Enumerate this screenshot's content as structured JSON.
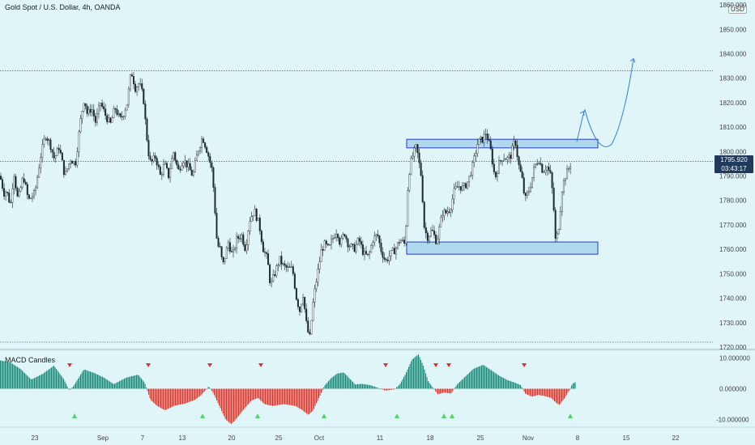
{
  "header": {
    "title": "Gold Spot / U.S. Dollar, 4h, OANDA"
  },
  "indicator": {
    "label": "MACD Candles"
  },
  "axis": {
    "currency": "USD"
  },
  "last_price": {
    "price": "1795.920",
    "countdown": "03:43:17"
  },
  "colors": {
    "background": "#dff5f8",
    "up": "#1a8a7a",
    "down": "#e0342b",
    "zone_fill": "#a8d4ef",
    "zone_stroke": "#2a3cc0",
    "projection": "#3b7fd9",
    "triangle_up": "#55d46a",
    "triangle_down": "#e0342b"
  },
  "chart_data": [
    {
      "type": "candlestick",
      "title": "Gold Spot / U.S. Dollar, 4h, OANDA",
      "y_ticks": [
        1860,
        1850,
        1840,
        1830,
        1820,
        1810,
        1800,
        1790,
        1780,
        1770,
        1760,
        1750,
        1740,
        1730,
        1720
      ],
      "ylim": [
        1719,
        1862
      ],
      "x_ticks": [
        "23",
        "Sep",
        "7",
        "13",
        "20",
        "25",
        "Oct",
        "11",
        "18",
        "25",
        "Nov",
        "8",
        "15",
        "22"
      ],
      "close_path": [
        [
          0,
          1790
        ],
        [
          5,
          1783
        ],
        [
          8,
          1784
        ],
        [
          13,
          1778
        ],
        [
          17,
          1792
        ],
        [
          22,
          1780
        ],
        [
          29,
          1790
        ],
        [
          35,
          1780
        ],
        [
          43,
          1783
        ],
        [
          50,
          1798
        ],
        [
          56,
          1807
        ],
        [
          62,
          1803
        ],
        [
          67,
          1797
        ],
        [
          73,
          1802
        ],
        [
          80,
          1790
        ],
        [
          87,
          1797
        ],
        [
          93,
          1795
        ],
        [
          99,
          1812
        ],
        [
          104,
          1822
        ],
        [
          108,
          1815
        ],
        [
          113,
          1818
        ],
        [
          118,
          1812
        ],
        [
          124,
          1820
        ],
        [
          130,
          1815
        ],
        [
          136,
          1811
        ],
        [
          142,
          1818
        ],
        [
          148,
          1813
        ],
        [
          152,
          1815
        ],
        [
          157,
          1820
        ],
        [
          162,
          1833
        ],
        [
          167,
          1826
        ],
        [
          172,
          1828
        ],
        [
          177,
          1822
        ],
        [
          180,
          1810
        ],
        [
          183,
          1800
        ],
        [
          186,
          1795
        ],
        [
          192,
          1798
        ],
        [
          198,
          1790
        ],
        [
          203,
          1795
        ],
        [
          208,
          1790
        ],
        [
          214,
          1800
        ],
        [
          220,
          1792
        ],
        [
          226,
          1797
        ],
        [
          232,
          1794
        ],
        [
          238,
          1790
        ],
        [
          244,
          1800
        ],
        [
          250,
          1806
        ],
        [
          256,
          1800
        ],
        [
          262,
          1792
        ],
        [
          265,
          1778
        ],
        [
          268,
          1762
        ],
        [
          272,
          1760
        ],
        [
          275,
          1753
        ],
        [
          282,
          1763
        ],
        [
          287,
          1757
        ],
        [
          292,
          1764
        ],
        [
          298,
          1766
        ],
        [
          303,
          1760
        ],
        [
          308,
          1772
        ],
        [
          314,
          1776
        ],
        [
          320,
          1770
        ],
        [
          325,
          1760
        ],
        [
          330,
          1756
        ],
        [
          334,
          1745
        ],
        [
          339,
          1750
        ],
        [
          345,
          1756
        ],
        [
          350,
          1753
        ],
        [
          356,
          1752
        ],
        [
          361,
          1752
        ],
        [
          366,
          1740
        ],
        [
          370,
          1735
        ],
        [
          374,
          1742
        ],
        [
          378,
          1730
        ],
        [
          382,
          1723
        ],
        [
          387,
          1740
        ],
        [
          392,
          1750
        ],
        [
          397,
          1760
        ],
        [
          401,
          1762
        ],
        [
          406,
          1760
        ],
        [
          410,
          1764
        ],
        [
          416,
          1768
        ],
        [
          420,
          1762
        ],
        [
          425,
          1767
        ],
        [
          430,
          1762
        ],
        [
          437,
          1760
        ],
        [
          443,
          1764
        ],
        [
          449,
          1758
        ],
        [
          455,
          1757
        ],
        [
          460,
          1764
        ],
        [
          466,
          1766
        ],
        [
          470,
          1760
        ],
        [
          476,
          1755
        ],
        [
          482,
          1758
        ],
        [
          488,
          1760
        ],
        [
          494,
          1764
        ],
        [
          500,
          1762
        ],
        [
          504,
          1790
        ],
        [
          508,
          1797
        ],
        [
          514,
          1802
        ],
        [
          520,
          1790
        ],
        [
          524,
          1768
        ],
        [
          528,
          1765
        ],
        [
          533,
          1768
        ],
        [
          539,
          1763
        ],
        [
          546,
          1775
        ],
        [
          551,
          1775
        ],
        [
          556,
          1777
        ],
        [
          561,
          1784
        ],
        [
          566,
          1786
        ],
        [
          572,
          1785
        ],
        [
          578,
          1788
        ],
        [
          584,
          1795
        ],
        [
          590,
          1804
        ],
        [
          596,
          1805
        ],
        [
          600,
          1808
        ],
        [
          606,
          1800
        ],
        [
          611,
          1789
        ],
        [
          616,
          1795
        ],
        [
          621,
          1798
        ],
        [
          626,
          1797
        ],
        [
          630,
          1798
        ],
        [
          636,
          1805
        ],
        [
          640,
          1795
        ],
        [
          645,
          1788
        ],
        [
          648,
          1780
        ],
        [
          654,
          1785
        ],
        [
          660,
          1794
        ],
        [
          665,
          1797
        ],
        [
          670,
          1792
        ],
        [
          675,
          1794
        ],
        [
          680,
          1790
        ],
        [
          683,
          1780
        ],
        [
          686,
          1762
        ],
        [
          690,
          1770
        ],
        [
          694,
          1785
        ],
        [
          698,
          1790
        ],
        [
          702,
          1793
        ],
        [
          706,
          1796
        ]
      ],
      "horizontal_lines": [
        1833,
        1796,
        1722
      ],
      "zones": [
        {
          "x_start": 502,
          "x_end": 738,
          "y_low": 1801.5,
          "y_high": 1805
        },
        {
          "x_start": 502,
          "x_end": 738,
          "y_low": 1758,
          "y_high": 1763
        }
      ],
      "projection": [
        [
          712,
          1804
        ],
        [
          722,
          1817
        ],
        [
          738,
          1808
        ],
        [
          755,
          1803
        ],
        [
          770,
          1812
        ],
        [
          782,
          1838
        ]
      ]
    },
    {
      "type": "bar",
      "title": "MACD Candles",
      "y_ticks": [
        10,
        0,
        -10
      ],
      "ylim": [
        -12.5,
        12.5
      ],
      "profile": [
        [
          0,
          9.2
        ],
        [
          12,
          8.6
        ],
        [
          25,
          6.4
        ],
        [
          38,
          3.0
        ],
        [
          52,
          4.8
        ],
        [
          66,
          7.5
        ],
        [
          78,
          3.2
        ],
        [
          85,
          -0.5
        ],
        [
          90,
          0.8
        ],
        [
          103,
          6.3
        ],
        [
          116,
          5.1
        ],
        [
          128,
          3.6
        ],
        [
          140,
          1.5
        ],
        [
          155,
          3.6
        ],
        [
          170,
          4.6
        ],
        [
          178,
          2.0
        ],
        [
          185,
          -3.5
        ],
        [
          193,
          -5.5
        ],
        [
          203,
          -7.0
        ],
        [
          215,
          -5.5
        ],
        [
          228,
          -4.8
        ],
        [
          240,
          -3.6
        ],
        [
          248,
          -2.0
        ],
        [
          257,
          0.8
        ],
        [
          263,
          -1.5
        ],
        [
          270,
          -5.5
        ],
        [
          278,
          -10.0
        ],
        [
          285,
          -11.5
        ],
        [
          292,
          -9.5
        ],
        [
          300,
          -6.8
        ],
        [
          310,
          -3.8
        ],
        [
          318,
          -3.0
        ],
        [
          326,
          -5.0
        ],
        [
          336,
          -5.6
        ],
        [
          350,
          -5.0
        ],
        [
          364,
          -5.6
        ],
        [
          372,
          -6.8
        ],
        [
          380,
          -8.5
        ],
        [
          386,
          -7.0
        ],
        [
          394,
          -2.5
        ],
        [
          400,
          1.0
        ],
        [
          408,
          3.4
        ],
        [
          416,
          5.0
        ],
        [
          424,
          5.3
        ],
        [
          430,
          3.6
        ],
        [
          438,
          1.4
        ],
        [
          446,
          1.6
        ],
        [
          456,
          1.2
        ],
        [
          464,
          0.5
        ],
        [
          475,
          -0.6
        ],
        [
          486,
          -0.2
        ],
        [
          493,
          1.4
        ],
        [
          500,
          4.8
        ],
        [
          508,
          9.5
        ],
        [
          516,
          11.2
        ],
        [
          522,
          7.5
        ],
        [
          528,
          2.5
        ],
        [
          534,
          0.3
        ],
        [
          540,
          -1.8
        ],
        [
          548,
          -1.2
        ],
        [
          556,
          -1.6
        ],
        [
          564,
          1.5
        ],
        [
          574,
          4.0
        ],
        [
          584,
          6.5
        ],
        [
          596,
          7.8
        ],
        [
          606,
          6.0
        ],
        [
          616,
          4.2
        ],
        [
          626,
          2.8
        ],
        [
          634,
          2.1
        ],
        [
          642,
          1.2
        ],
        [
          648,
          -1.6
        ],
        [
          656,
          -2.6
        ],
        [
          664,
          -2.0
        ],
        [
          672,
          -2.4
        ],
        [
          680,
          -3.0
        ],
        [
          686,
          -4.6
        ],
        [
          690,
          -5.2
        ],
        [
          696,
          -3.2
        ],
        [
          702,
          -0.6
        ],
        [
          706,
          1.6
        ],
        [
          710,
          2.2
        ]
      ],
      "markers_down": [
        86,
        183,
        259,
        322,
        476,
        538,
        554,
        647
      ],
      "markers_up": [
        92,
        250,
        318,
        400,
        490,
        548,
        558,
        704
      ]
    }
  ]
}
